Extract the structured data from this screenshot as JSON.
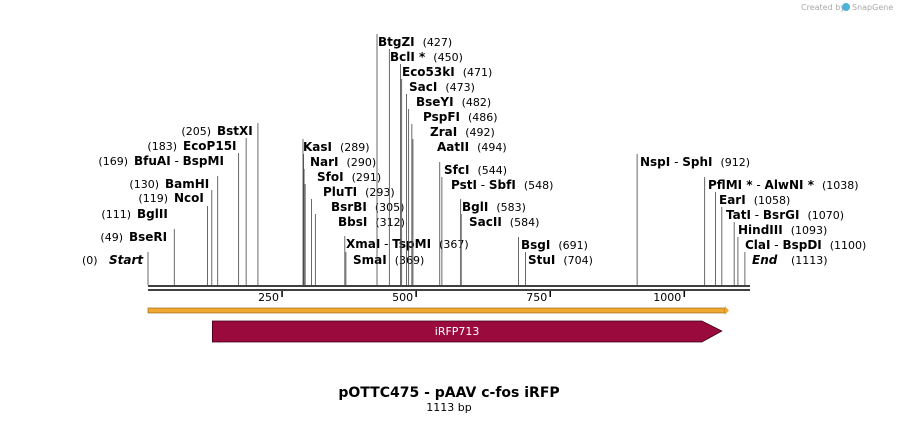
{
  "credit": {
    "prefix": "Created by",
    "brand": "SnapGene"
  },
  "plasmid": {
    "title": "pOTTC475 - pAAV c-fos iRFP",
    "length_label": "1113 bp",
    "length": 1113
  },
  "ruler": {
    "ticks": [
      {
        "value": 250,
        "label": "250"
      },
      {
        "value": 500,
        "label": "500"
      },
      {
        "value": 750,
        "label": "750"
      },
      {
        "value": 1000,
        "label": "1000"
      }
    ]
  },
  "features": [
    {
      "name": "iRFP713",
      "start": 120,
      "end": 1070,
      "direction": "forward",
      "color": "#9b0a3c"
    }
  ],
  "orange_bar": {
    "start": 0,
    "end": 1113,
    "color": "#f0a830"
  },
  "sites": [
    {
      "segments": [
        {
          "text": "Start",
          "italic": true
        }
      ],
      "position_label": "(0)",
      "bp": 0
    },
    {
      "segments": [
        {
          "text": "BseRI"
        }
      ],
      "position_label": "(49)",
      "bp": 49
    },
    {
      "segments": [
        {
          "text": "BglII"
        }
      ],
      "position_label": "(111)",
      "bp": 111
    },
    {
      "segments": [
        {
          "text": "NcoI"
        }
      ],
      "position_label": "(119)",
      "bp": 119
    },
    {
      "segments": [
        {
          "text": "BamHI"
        }
      ],
      "position_label": "(130)",
      "bp": 130
    },
    {
      "segments": [
        {
          "text": "BfuAI"
        },
        {
          "text": " - ",
          "sep": true
        },
        {
          "text": "BspMI"
        }
      ],
      "position_label": "(169)",
      "bp": 169
    },
    {
      "segments": [
        {
          "text": "EcoP15I"
        }
      ],
      "position_label": "(183)",
      "bp": 183
    },
    {
      "segments": [
        {
          "text": "BstXI"
        }
      ],
      "position_label": "(205)",
      "bp": 205
    },
    {
      "segments": [
        {
          "text": "KasI"
        }
      ],
      "position_label": "(289)",
      "bp": 289
    },
    {
      "segments": [
        {
          "text": "NarI"
        }
      ],
      "position_label": "(290)",
      "bp": 290
    },
    {
      "segments": [
        {
          "text": "SfoI"
        }
      ],
      "position_label": "(291)",
      "bp": 291
    },
    {
      "segments": [
        {
          "text": "PluTI"
        }
      ],
      "position_label": "(293)",
      "bp": 293
    },
    {
      "segments": [
        {
          "text": "BsrBI"
        }
      ],
      "position_label": "(305)",
      "bp": 305
    },
    {
      "segments": [
        {
          "text": "BbsI"
        }
      ],
      "position_label": "(312)",
      "bp": 312
    },
    {
      "segments": [
        {
          "text": "XmaI"
        },
        {
          "text": " - ",
          "sep": true
        },
        {
          "text": "TspMI"
        }
      ],
      "position_label": "(367)",
      "bp": 367
    },
    {
      "segments": [
        {
          "text": "SmaI"
        }
      ],
      "position_label": "(369)",
      "bp": 369
    },
    {
      "segments": [
        {
          "text": "BtgZI"
        }
      ],
      "position_label": "(427)",
      "bp": 427
    },
    {
      "segments": [
        {
          "text": "BclI *"
        }
      ],
      "position_label": "(450)",
      "bp": 450
    },
    {
      "segments": [
        {
          "text": "Eco53kI"
        }
      ],
      "position_label": "(471)",
      "bp": 471
    },
    {
      "segments": [
        {
          "text": "SacI"
        }
      ],
      "position_label": "(473)",
      "bp": 473
    },
    {
      "segments": [
        {
          "text": "BseYI"
        }
      ],
      "position_label": "(482)",
      "bp": 482
    },
    {
      "segments": [
        {
          "text": "PspFI"
        }
      ],
      "position_label": "(486)",
      "bp": 486
    },
    {
      "segments": [
        {
          "text": "ZraI"
        }
      ],
      "position_label": "(492)",
      "bp": 492
    },
    {
      "segments": [
        {
          "text": "AatII"
        }
      ],
      "position_label": "(494)",
      "bp": 494
    },
    {
      "segments": [
        {
          "text": "SfcI"
        }
      ],
      "position_label": "(544)",
      "bp": 544
    },
    {
      "segments": [
        {
          "text": "PstI"
        },
        {
          "text": " - ",
          "sep": true
        },
        {
          "text": "SbfI"
        }
      ],
      "position_label": "(548)",
      "bp": 548
    },
    {
      "segments": [
        {
          "text": "BglI"
        }
      ],
      "position_label": "(583)",
      "bp": 583
    },
    {
      "segments": [
        {
          "text": "SacII"
        }
      ],
      "position_label": "(584)",
      "bp": 584
    },
    {
      "segments": [
        {
          "text": "BsgI"
        }
      ],
      "position_label": "(691)",
      "bp": 691
    },
    {
      "segments": [
        {
          "text": "StuI"
        }
      ],
      "position_label": "(704)",
      "bp": 704
    },
    {
      "segments": [
        {
          "text": "NspI"
        },
        {
          "text": " - ",
          "sep": true
        },
        {
          "text": "SphI"
        }
      ],
      "position_label": "(912)",
      "bp": 912
    },
    {
      "segments": [
        {
          "text": "PflMI *"
        },
        {
          "text": " - ",
          "sep": true
        },
        {
          "text": "AlwNI *"
        }
      ],
      "position_label": "(1038)",
      "bp": 1038
    },
    {
      "segments": [
        {
          "text": "EarI"
        }
      ],
      "position_label": "(1058)",
      "bp": 1058
    },
    {
      "segments": [
        {
          "text": "TatI"
        },
        {
          "text": " - ",
          "sep": true
        },
        {
          "text": "BsrGI"
        }
      ],
      "position_label": "(1070)",
      "bp": 1070
    },
    {
      "segments": [
        {
          "text": "HindIII"
        }
      ],
      "position_label": "(1093)",
      "bp": 1093
    },
    {
      "segments": [
        {
          "text": "ClaI"
        },
        {
          "text": " - ",
          "sep": true
        },
        {
          "text": "BspDI"
        }
      ],
      "position_label": "(1100)",
      "bp": 1100
    },
    {
      "segments": [
        {
          "text": "End",
          "italic": true
        }
      ],
      "position_label": "(1113)",
      "bp": 1113
    }
  ]
}
